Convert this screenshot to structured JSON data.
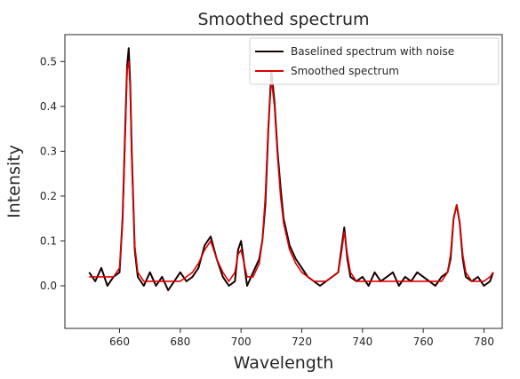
{
  "chart_data": {
    "type": "line",
    "title": "Smoothed spectrum",
    "xlabel": "Wavelength",
    "ylabel": "Intensity",
    "xlim": [
      642,
      786
    ],
    "ylim": [
      -0.095,
      0.56
    ],
    "xticks": [
      660,
      680,
      700,
      720,
      740,
      760,
      780
    ],
    "yticks": [
      0.0,
      0.1,
      0.2,
      0.3,
      0.4,
      0.5
    ],
    "ytick_labels": [
      "0.0",
      "0.1",
      "0.2",
      "0.3",
      "0.4",
      "0.5"
    ],
    "grid": false,
    "legend_position": "top-right",
    "series": [
      {
        "name": "Baselined spectrum with noise",
        "color": "#1a0000",
        "x": [
          650,
          652,
          654,
          656,
          658,
          660,
          661,
          662,
          662.5,
          663,
          663.5,
          664,
          665,
          666,
          668,
          670,
          672,
          674,
          676,
          678,
          680,
          682,
          684,
          686,
          688,
          690,
          692,
          694,
          696,
          698,
          699,
          700,
          701,
          702,
          704,
          706,
          707,
          708,
          709,
          710,
          711,
          712,
          713,
          714,
          716,
          718,
          720,
          722,
          724,
          726,
          728,
          730,
          732,
          733,
          734,
          735,
          736,
          738,
          740,
          742,
          744,
          746,
          748,
          750,
          752,
          754,
          756,
          758,
          760,
          762,
          764,
          766,
          768,
          769,
          770,
          771,
          772,
          773,
          774,
          776,
          778,
          780,
          782,
          783
        ],
        "y": [
          0.03,
          0.01,
          0.04,
          0.0,
          0.02,
          0.03,
          0.15,
          0.38,
          0.49,
          0.53,
          0.45,
          0.3,
          0.08,
          0.02,
          0.0,
          0.03,
          0.0,
          0.02,
          -0.01,
          0.01,
          0.03,
          0.01,
          0.02,
          0.04,
          0.09,
          0.11,
          0.06,
          0.02,
          0.0,
          0.01,
          0.08,
          0.1,
          0.05,
          0.0,
          0.03,
          0.06,
          0.1,
          0.18,
          0.35,
          0.48,
          0.41,
          0.3,
          0.22,
          0.15,
          0.09,
          0.06,
          0.04,
          0.02,
          0.01,
          0.0,
          0.01,
          0.02,
          0.03,
          0.08,
          0.13,
          0.06,
          0.02,
          0.01,
          0.02,
          0.0,
          0.03,
          0.01,
          0.02,
          0.03,
          0.0,
          0.02,
          0.01,
          0.03,
          0.02,
          0.01,
          0.0,
          0.02,
          0.03,
          0.06,
          0.15,
          0.18,
          0.14,
          0.06,
          0.02,
          0.01,
          0.02,
          0.0,
          0.01,
          0.03
        ]
      },
      {
        "name": "Smoothed spectrum",
        "color": "#e00000",
        "x": [
          650,
          652,
          654,
          656,
          658,
          660,
          661,
          662,
          662.5,
          663,
          663.5,
          664,
          665,
          666,
          668,
          670,
          672,
          674,
          676,
          678,
          680,
          682,
          684,
          686,
          688,
          690,
          692,
          694,
          696,
          698,
          699,
          700,
          701,
          702,
          704,
          706,
          707,
          708,
          709,
          710,
          711,
          712,
          713,
          714,
          716,
          718,
          720,
          722,
          724,
          726,
          728,
          730,
          732,
          733,
          734,
          735,
          736,
          738,
          740,
          742,
          744,
          746,
          748,
          750,
          752,
          754,
          756,
          758,
          760,
          762,
          764,
          766,
          768,
          769,
          770,
          771,
          772,
          773,
          774,
          776,
          778,
          780,
          782,
          783
        ],
        "y": [
          0.02,
          0.02,
          0.02,
          0.02,
          0.02,
          0.04,
          0.14,
          0.36,
          0.48,
          0.5,
          0.44,
          0.28,
          0.09,
          0.03,
          0.01,
          0.01,
          0.01,
          0.01,
          0.01,
          0.01,
          0.01,
          0.02,
          0.03,
          0.05,
          0.08,
          0.1,
          0.06,
          0.03,
          0.01,
          0.03,
          0.07,
          0.08,
          0.05,
          0.02,
          0.02,
          0.05,
          0.1,
          0.2,
          0.36,
          0.46,
          0.4,
          0.29,
          0.2,
          0.14,
          0.08,
          0.05,
          0.03,
          0.02,
          0.01,
          0.01,
          0.01,
          0.02,
          0.03,
          0.07,
          0.12,
          0.07,
          0.03,
          0.01,
          0.01,
          0.01,
          0.01,
          0.01,
          0.01,
          0.01,
          0.01,
          0.01,
          0.01,
          0.01,
          0.01,
          0.01,
          0.01,
          0.01,
          0.03,
          0.07,
          0.15,
          0.18,
          0.14,
          0.07,
          0.03,
          0.01,
          0.01,
          0.01,
          0.02,
          0.03
        ]
      }
    ]
  }
}
